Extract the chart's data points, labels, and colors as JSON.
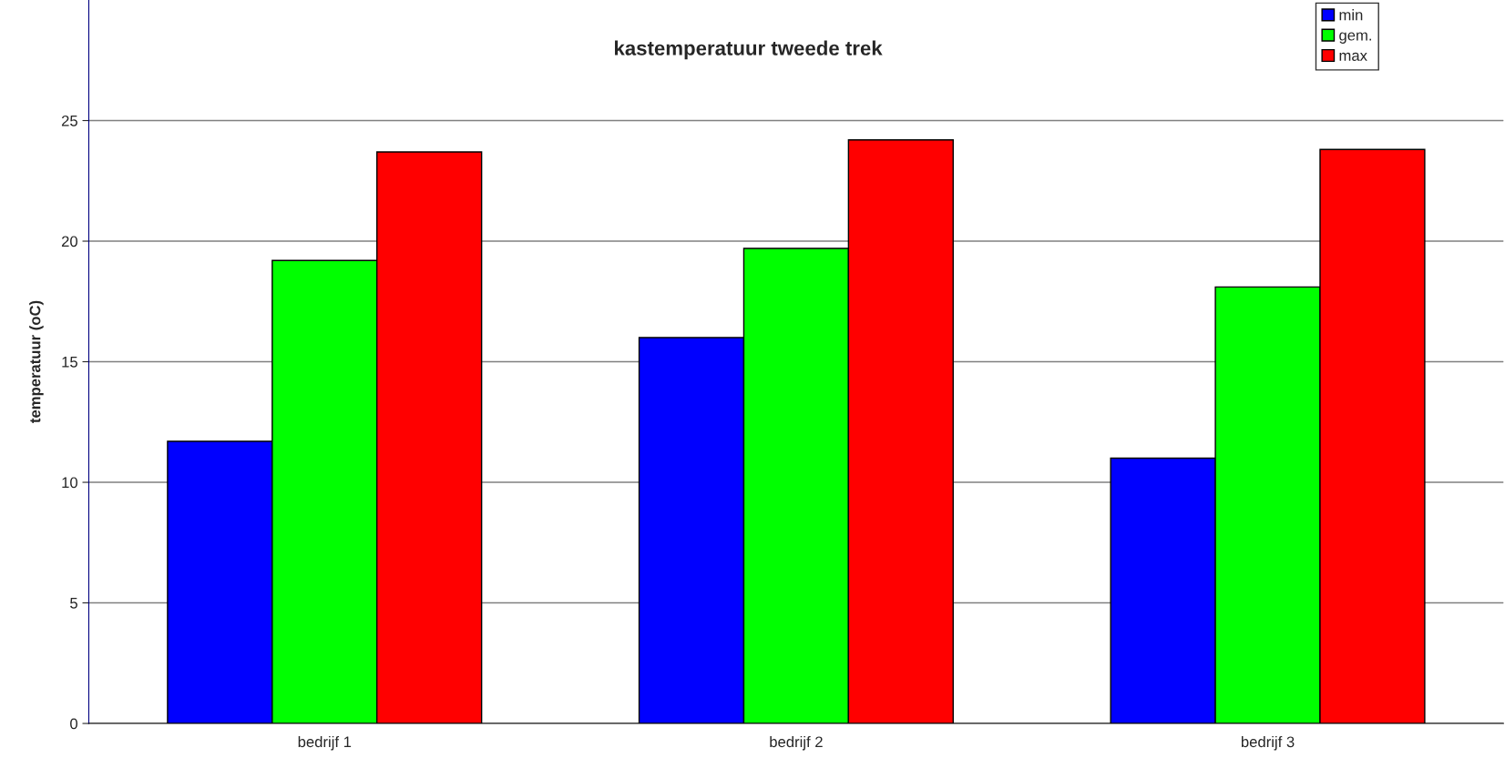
{
  "chart_data": {
    "type": "bar",
    "title": "kastemperatuur tweede trek",
    "ylabel": "temperatuur (oC)",
    "categories": [
      "bedrijf 1",
      "bedrijf 2",
      "bedrijf 3"
    ],
    "series": [
      {
        "name": "min",
        "color": "#0000ff",
        "values": [
          11.7,
          16.0,
          11.0
        ]
      },
      {
        "name": "gem.",
        "color": "#00ff00",
        "values": [
          19.2,
          19.7,
          18.1
        ]
      },
      {
        "name": "max",
        "color": "#ff0000",
        "values": [
          23.7,
          24.2,
          23.8
        ]
      }
    ],
    "ylim": [
      0,
      30
    ],
    "yticks": [
      0,
      5,
      10,
      15,
      20,
      25
    ],
    "grid": "y",
    "legend": "top right"
  }
}
